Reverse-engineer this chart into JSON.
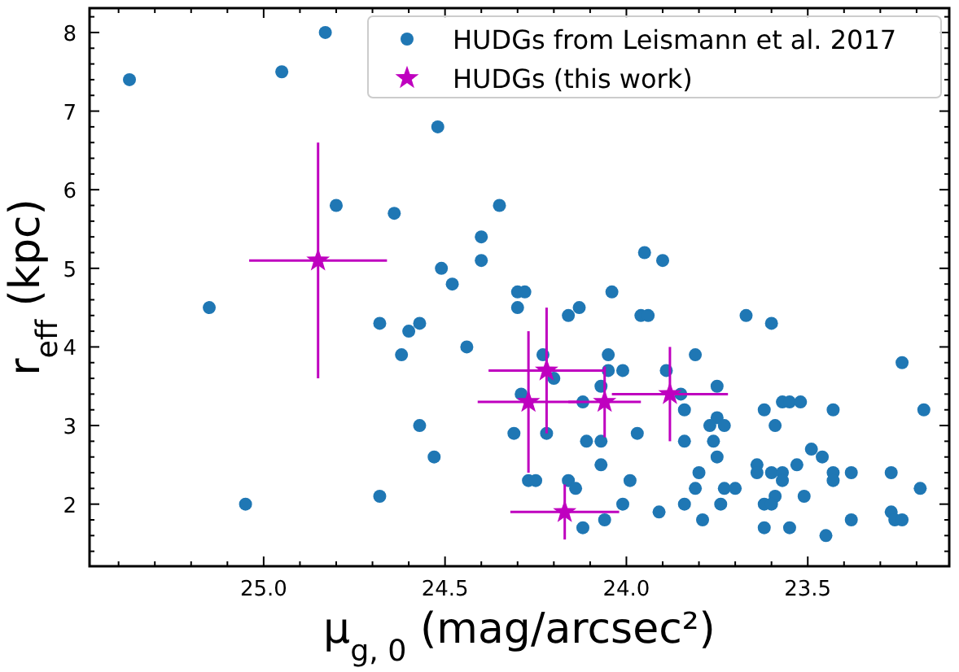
{
  "chart_data": {
    "type": "scatter",
    "xlabel": "μ$_{g, 0}$ (mag/arcsec²)",
    "ylabel": "r$_{eff}$ (kpc)",
    "xlim": [
      25.48,
      23.11
    ],
    "ylim": [
      1.21,
      8.31
    ],
    "xticks": [
      {
        "value": 25.4,
        "label": null
      },
      {
        "value": 25.3,
        "label": null
      },
      {
        "value": 25.2,
        "label": null
      },
      {
        "value": 25.1,
        "label": null
      },
      {
        "value": 25.0,
        "label": "25.0"
      },
      {
        "value": 24.9,
        "label": null
      },
      {
        "value": 24.8,
        "label": null
      },
      {
        "value": 24.7,
        "label": null
      },
      {
        "value": 24.6,
        "label": null
      },
      {
        "value": 24.5,
        "label": "24.5"
      },
      {
        "value": 24.4,
        "label": null
      },
      {
        "value": 24.3,
        "label": null
      },
      {
        "value": 24.2,
        "label": null
      },
      {
        "value": 24.1,
        "label": null
      },
      {
        "value": 24.0,
        "label": "24.0"
      },
      {
        "value": 23.9,
        "label": null
      },
      {
        "value": 23.8,
        "label": null
      },
      {
        "value": 23.7,
        "label": null
      },
      {
        "value": 23.6,
        "label": null
      },
      {
        "value": 23.5,
        "label": "23.5"
      },
      {
        "value": 23.4,
        "label": null
      },
      {
        "value": 23.3,
        "label": null
      },
      {
        "value": 23.2,
        "label": null
      }
    ],
    "yticks": [
      {
        "value": 1.4,
        "label": null
      },
      {
        "value": 1.6,
        "label": null
      },
      {
        "value": 1.8,
        "label": null
      },
      2,
      {
        "value": 2.2,
        "label": null
      },
      {
        "value": 2.4,
        "label": null
      },
      {
        "value": 2.6,
        "label": null
      },
      {
        "value": 2.8,
        "label": null
      },
      3,
      {
        "value": 3.2,
        "label": null
      },
      {
        "value": 3.4,
        "label": null
      },
      {
        "value": 3.6,
        "label": null
      },
      {
        "value": 3.8,
        "label": null
      },
      4,
      {
        "value": 4.2,
        "label": null
      },
      {
        "value": 4.4,
        "label": null
      },
      {
        "value": 4.6,
        "label": null
      },
      {
        "value": 4.8,
        "label": null
      },
      5,
      {
        "value": 5.2,
        "label": null
      },
      {
        "value": 5.4,
        "label": null
      },
      {
        "value": 5.6,
        "label": null
      },
      {
        "value": 5.8,
        "label": null
      },
      6,
      {
        "value": 6.2,
        "label": null
      },
      {
        "value": 6.4,
        "label": null
      },
      {
        "value": 6.6,
        "label": null
      },
      {
        "value": 6.8,
        "label": null
      },
      7,
      {
        "value": 7.2,
        "label": null
      },
      {
        "value": 7.4,
        "label": null
      },
      {
        "value": 7.6,
        "label": null
      },
      {
        "value": 7.8,
        "label": null
      },
      8,
      {
        "value": 8.2,
        "label": null
      }
    ],
    "grid": false,
    "legend": "top right",
    "series": [
      {
        "name": "HUDGs from Leismann et al. 2017",
        "color": "#1f77b4",
        "marker": "circle",
        "x": [
          25.37,
          24.95,
          24.83,
          24.52,
          24.8,
          24.64,
          24.35,
          24.4,
          24.4,
          24.51,
          24.48,
          24.3,
          24.28,
          24.3,
          25.15,
          24.68,
          24.57,
          23.95,
          23.9,
          24.04,
          24.16,
          24.13,
          23.96,
          23.94,
          23.67,
          23.6,
          24.6,
          24.62,
          24.44,
          24.57,
          24.53,
          25.05,
          24.68,
          24.29,
          24.31,
          24.27,
          24.25,
          24.23,
          24.2,
          24.12,
          24.05,
          24.05,
          24.01,
          24.07,
          23.89,
          23.81,
          23.85,
          23.84,
          23.75,
          23.75,
          23.77,
          23.73,
          23.62,
          23.59,
          23.57,
          23.55,
          23.52,
          23.43,
          23.18,
          23.24,
          24.22,
          24.11,
          24.07,
          23.97,
          23.84,
          23.76,
          23.75,
          23.49,
          23.46,
          24.16,
          24.14,
          24.07,
          23.99,
          23.8,
          23.81,
          23.73,
          23.7,
          23.64,
          23.64,
          23.6,
          23.57,
          23.57,
          23.53,
          23.43,
          23.43,
          23.38,
          23.27,
          23.19,
          23.59,
          23.62,
          23.6,
          23.51,
          24.01,
          23.84,
          23.74,
          23.91,
          23.79,
          24.06,
          24.12,
          23.62,
          23.55,
          23.45,
          23.38,
          23.27,
          23.26,
          23.24
        ],
        "values": [
          7.4,
          7.5,
          8.0,
          6.8,
          5.8,
          5.7,
          5.8,
          5.4,
          5.1,
          5.0,
          4.8,
          4.7,
          4.7,
          4.5,
          4.5,
          4.3,
          4.3,
          5.2,
          5.1,
          4.7,
          4.4,
          4.5,
          4.4,
          4.4,
          4.4,
          4.3,
          4.2,
          3.9,
          4.0,
          3.0,
          2.6,
          2.0,
          2.1,
          3.4,
          2.9,
          2.3,
          2.3,
          3.9,
          3.6,
          3.3,
          3.9,
          3.7,
          3.7,
          3.5,
          3.7,
          3.9,
          3.4,
          3.2,
          3.5,
          3.1,
          3.0,
          3.0,
          3.2,
          3.0,
          3.3,
          3.3,
          3.3,
          3.2,
          3.2,
          3.8,
          2.9,
          2.8,
          2.8,
          2.9,
          2.8,
          2.8,
          2.6,
          2.7,
          2.6,
          2.3,
          2.2,
          2.5,
          2.3,
          2.4,
          2.2,
          2.2,
          2.2,
          2.5,
          2.4,
          2.4,
          2.4,
          2.3,
          2.5,
          2.4,
          2.3,
          2.4,
          2.4,
          2.2,
          2.1,
          2.0,
          2.0,
          2.1,
          2.0,
          2.0,
          2.0,
          1.9,
          1.8,
          1.8,
          1.7,
          1.7,
          1.7,
          1.6,
          1.8,
          1.9,
          1.8,
          1.8
        ]
      },
      {
        "name": "HUDGs (this work)",
        "color": "#bf00bf",
        "marker": "star",
        "x": [
          24.85,
          24.27,
          24.22,
          24.06,
          23.88,
          24.17
        ],
        "values": [
          5.1,
          3.3,
          3.7,
          3.3,
          3.4,
          1.9
        ],
        "errors": [
          1.5,
          0.9,
          0.8,
          0.45,
          0.6,
          0.35
        ],
        "xerrors": [
          0.19,
          0.14,
          0.16,
          0.1,
          0.16,
          0.15
        ]
      }
    ]
  }
}
